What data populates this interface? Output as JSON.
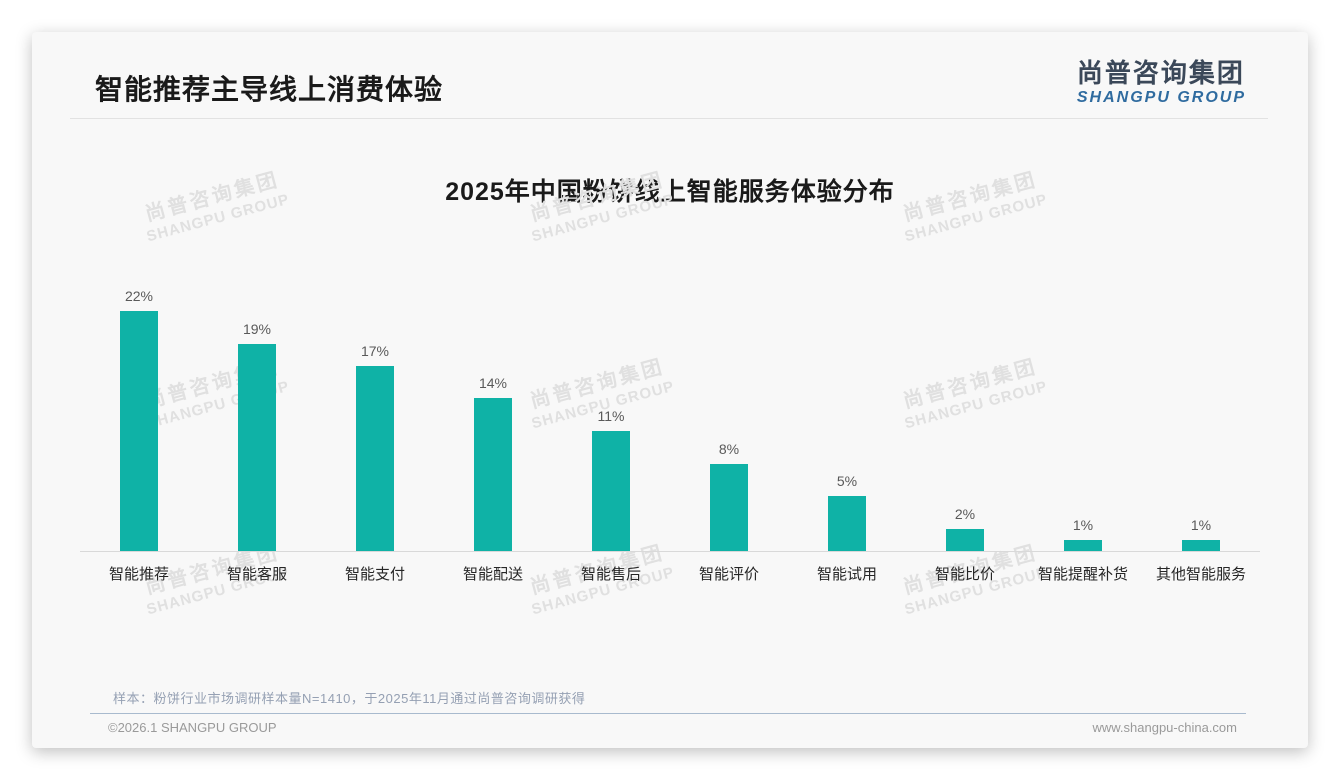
{
  "page": {
    "header_title": "智能推荐主导线上消费体验",
    "logo": {
      "zh": "尚普咨询集团",
      "en": "SHANGPU GROUP"
    },
    "brand_colors": {
      "logo_zh": "#3b4859",
      "logo_en": "#2f6b9f"
    },
    "watermark": {
      "zh": "尚普咨询集团",
      "en": "SHANGPU GROUP"
    },
    "note": "样本：粉饼行业市场调研样本量N=1410，于2025年11月通过尚普咨询调研获得",
    "footer": {
      "copyright": "©2026.1 SHANGPU GROUP",
      "website": "www.shangpu-china.com"
    }
  },
  "chart_data": {
    "type": "bar",
    "title": "2025年中国粉饼线上智能服务体验分布",
    "categories": [
      "智能推荐",
      "智能客服",
      "智能支付",
      "智能配送",
      "智能售后",
      "智能评价",
      "智能试用",
      "智能比价",
      "智能提醒补货",
      "其他智能服务"
    ],
    "values": [
      22,
      19,
      17,
      14,
      11,
      8,
      5,
      2,
      1,
      1
    ],
    "unit": "%",
    "bar_color": "#0fb2a6",
    "value_label_color": "#595959",
    "axis_line_color": "#d9d9d9",
    "ylim": [
      0,
      24
    ],
    "grid": false,
    "legend": false,
    "xlabel": "",
    "ylabel": ""
  }
}
